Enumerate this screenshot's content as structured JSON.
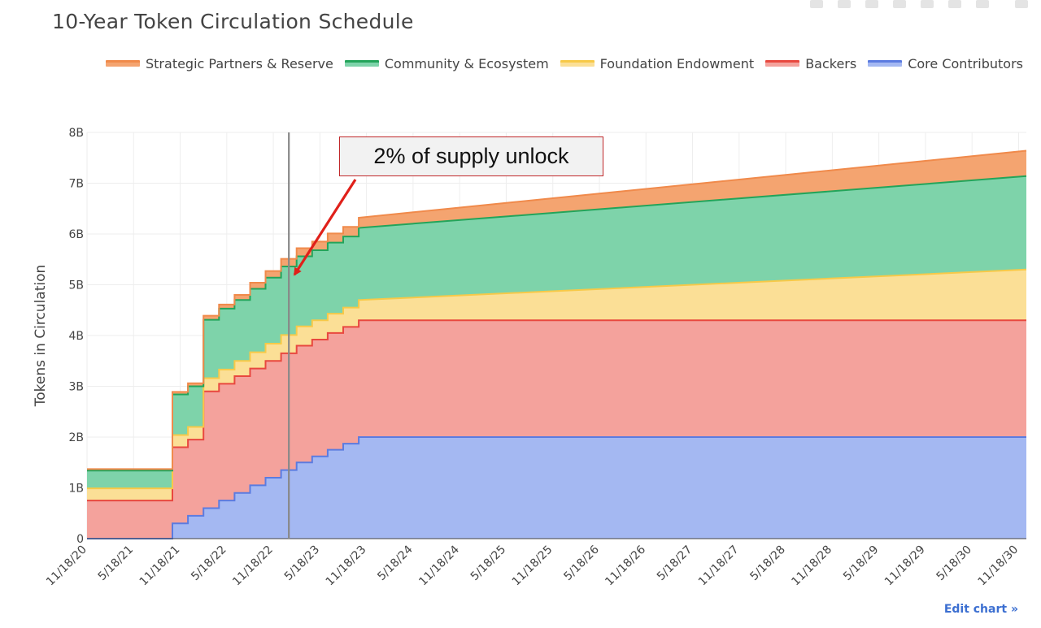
{
  "title": "10-Year Token Circulation Schedule",
  "edit_link": "Edit chart »",
  "annotation": "2% of supply unlock",
  "colors": {
    "strategic": "#f4a470",
    "strategic_line": "#f08a4b",
    "community": "#7ed3aa",
    "community_line": "#23a45a",
    "foundation": "#fbdf96",
    "foundation_line": "#f7c948",
    "backers": "#f4a29c",
    "backers_line": "#e8483f",
    "core": "#a4b8f2",
    "core_line": "#5b7be0",
    "grid": "#eeeeee",
    "axis_text": "#444444",
    "marker_line": "#888888",
    "arrow": "#e0201a"
  },
  "chart_data": {
    "type": "area",
    "stacked": true,
    "title": "10-Year Token Circulation Schedule",
    "ylabel": "Tokens in Circulation",
    "xlabel": "",
    "ylim": [
      0,
      8
    ],
    "y_ticks": [
      0,
      1,
      2,
      3,
      4,
      5,
      6,
      7,
      8
    ],
    "y_tick_labels": [
      "0",
      "1B",
      "2B",
      "3B",
      "4B",
      "5B",
      "6B",
      "7B",
      "8B"
    ],
    "x_ticks": [
      0,
      6,
      12,
      18,
      24,
      30,
      36,
      42,
      48,
      54,
      60,
      66,
      72,
      78,
      84,
      90,
      96,
      102,
      108,
      114,
      120
    ],
    "x_tick_labels": [
      "11/18/20",
      "5/18/21",
      "11/18/21",
      "5/18/22",
      "11/18/22",
      "5/18/23",
      "11/18/23",
      "5/18/24",
      "11/18/24",
      "5/18/25",
      "11/18/25",
      "5/18/26",
      "11/18/26",
      "5/18/27",
      "11/18/27",
      "5/18/28",
      "11/18/28",
      "5/18/29",
      "11/18/29",
      "5/18/30",
      "11/18/30"
    ],
    "x_unit": "months since 11/18/20",
    "marker_x": 26,
    "legend_order": [
      "Strategic Partners & Reserve",
      "Community & Ecosystem",
      "Foundation Endowment",
      "Backers",
      "Core Contributors"
    ],
    "series": [
      {
        "name": "Core Contributors",
        "key": "core",
        "points": [
          [
            0,
            0
          ],
          [
            11,
            0
          ],
          [
            11,
            0.3
          ],
          [
            13,
            0.3
          ],
          [
            13,
            0.45
          ],
          [
            15,
            0.45
          ],
          [
            15,
            0.6
          ],
          [
            17,
            0.6
          ],
          [
            17,
            0.75
          ],
          [
            19,
            0.75
          ],
          [
            19,
            0.9
          ],
          [
            21,
            0.9
          ],
          [
            21,
            1.05
          ],
          [
            23,
            1.05
          ],
          [
            23,
            1.2
          ],
          [
            25,
            1.2
          ],
          [
            25,
            1.35
          ],
          [
            27,
            1.35
          ],
          [
            27,
            1.5
          ],
          [
            29,
            1.5
          ],
          [
            29,
            1.62
          ],
          [
            31,
            1.62
          ],
          [
            31,
            1.75
          ],
          [
            33,
            1.75
          ],
          [
            33,
            1.87
          ],
          [
            35,
            1.87
          ],
          [
            35,
            2.0
          ],
          [
            121,
            2.0
          ]
        ]
      },
      {
        "name": "Backers",
        "key": "backers",
        "points": [
          [
            0,
            0.75
          ],
          [
            11,
            0.75
          ],
          [
            11,
            1.5
          ],
          [
            13,
            1.5
          ],
          [
            13,
            1.5
          ],
          [
            15,
            1.5
          ],
          [
            15,
            2.3
          ],
          [
            17,
            2.3
          ],
          [
            17,
            2.3
          ],
          [
            19,
            2.3
          ],
          [
            19,
            2.3
          ],
          [
            21,
            2.3
          ],
          [
            21,
            2.3
          ],
          [
            23,
            2.3
          ],
          [
            23,
            2.3
          ],
          [
            25,
            2.3
          ],
          [
            25,
            2.3
          ],
          [
            27,
            2.3
          ],
          [
            27,
            2.3
          ],
          [
            29,
            2.3
          ],
          [
            29,
            2.3
          ],
          [
            31,
            2.3
          ],
          [
            31,
            2.3
          ],
          [
            33,
            2.3
          ],
          [
            33,
            2.3
          ],
          [
            35,
            2.3
          ],
          [
            35,
            2.3
          ],
          [
            121,
            2.3
          ]
        ]
      },
      {
        "name": "Foundation Endowment",
        "key": "foundation",
        "points": [
          [
            0,
            0.24
          ],
          [
            11,
            0.24
          ],
          [
            11,
            0.24
          ],
          [
            13,
            0.24
          ],
          [
            13,
            0.25
          ],
          [
            15,
            0.25
          ],
          [
            15,
            0.26
          ],
          [
            17,
            0.26
          ],
          [
            17,
            0.28
          ],
          [
            19,
            0.28
          ],
          [
            19,
            0.3
          ],
          [
            21,
            0.3
          ],
          [
            21,
            0.32
          ],
          [
            23,
            0.32
          ],
          [
            23,
            0.34
          ],
          [
            25,
            0.34
          ],
          [
            25,
            0.36
          ],
          [
            27,
            0.36
          ],
          [
            27,
            0.38
          ],
          [
            29,
            0.38
          ],
          [
            29,
            0.38
          ],
          [
            31,
            0.38
          ],
          [
            31,
            0.38
          ],
          [
            33,
            0.38
          ],
          [
            33,
            0.38
          ],
          [
            35,
            0.38
          ],
          [
            35,
            0.4
          ],
          [
            121,
            1.0
          ]
        ]
      },
      {
        "name": "Community & Ecosystem",
        "key": "community",
        "points": [
          [
            0,
            0.35
          ],
          [
            11,
            0.35
          ],
          [
            11,
            0.8
          ],
          [
            13,
            0.8
          ],
          [
            13,
            0.8
          ],
          [
            15,
            0.8
          ],
          [
            15,
            1.15
          ],
          [
            17,
            1.15
          ],
          [
            17,
            1.2
          ],
          [
            19,
            1.2
          ],
          [
            19,
            1.2
          ],
          [
            21,
            1.2
          ],
          [
            21,
            1.25
          ],
          [
            23,
            1.25
          ],
          [
            23,
            1.3
          ],
          [
            25,
            1.3
          ],
          [
            25,
            1.35
          ],
          [
            27,
            1.35
          ],
          [
            27,
            1.38
          ],
          [
            29,
            1.38
          ],
          [
            29,
            1.38
          ],
          [
            31,
            1.38
          ],
          [
            31,
            1.4
          ],
          [
            33,
            1.4
          ],
          [
            33,
            1.4
          ],
          [
            35,
            1.4
          ],
          [
            35,
            1.42
          ],
          [
            121,
            1.84
          ]
        ]
      },
      {
        "name": "Strategic Partners & Reserve",
        "key": "strategic",
        "points": [
          [
            0,
            0.03
          ],
          [
            11,
            0.03
          ],
          [
            11,
            0.05
          ],
          [
            13,
            0.05
          ],
          [
            13,
            0.06
          ],
          [
            15,
            0.06
          ],
          [
            15,
            0.08
          ],
          [
            17,
            0.08
          ],
          [
            17,
            0.08
          ],
          [
            19,
            0.08
          ],
          [
            19,
            0.1
          ],
          [
            21,
            0.1
          ],
          [
            21,
            0.12
          ],
          [
            23,
            0.12
          ],
          [
            23,
            0.13
          ],
          [
            25,
            0.13
          ],
          [
            25,
            0.15
          ],
          [
            27,
            0.15
          ],
          [
            27,
            0.16
          ],
          [
            29,
            0.16
          ],
          [
            29,
            0.17
          ],
          [
            31,
            0.17
          ],
          [
            31,
            0.18
          ],
          [
            33,
            0.18
          ],
          [
            33,
            0.19
          ],
          [
            35,
            0.19
          ],
          [
            35,
            0.2
          ],
          [
            121,
            0.5
          ]
        ]
      }
    ]
  }
}
